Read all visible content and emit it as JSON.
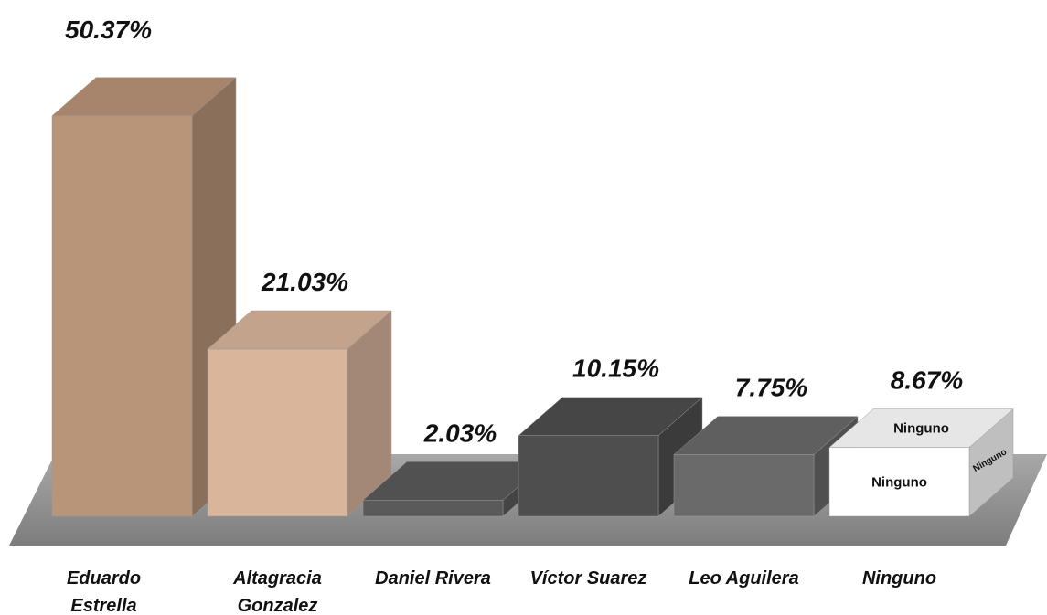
{
  "chart_data": {
    "type": "bar3d",
    "categories": [
      "Eduardo Estrella",
      "Altagracia Gonzalez",
      "Daniel Rivera",
      "Víctor Suarez",
      "Leo Aguilera",
      "Ninguno"
    ],
    "values": [
      50.37,
      21.03,
      2.03,
      10.15,
      7.75,
      8.67
    ],
    "value_labels": [
      "50.37%",
      "21.03%",
      "2.03%",
      "10.15%",
      "7.75%",
      "8.67%"
    ],
    "colors": [
      "#b89478",
      "#d9b59c",
      "#5a5a5a",
      "#4e4e4e",
      "#6a6a6a",
      "#ffffff"
    ]
  }
}
